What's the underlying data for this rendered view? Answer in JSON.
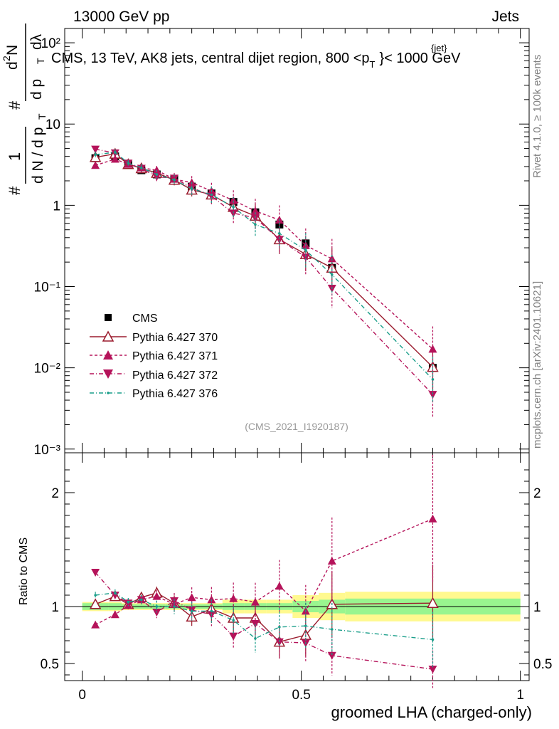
{
  "header": {
    "energy_label": "13000 GeV pp",
    "category_label": "Jets",
    "rivet_label": "Rivet 4.1.0, ≥ 100k events",
    "mcplots_label": "mcplots.cern.ch [arXiv:2401.10621]",
    "analysis_id": "(CMS_2021_I1920187)",
    "plot_title_main": "CMS, 13 TeV, AK8 jets, central dijet region, 800 <p",
    "plot_title_sub": "T",
    "plot_title_sup": "{jet}",
    "plot_title_end": "}< 1000 GeV"
  },
  "axes": {
    "main_ylabel_parts": [
      "1",
      "d N / d p",
      "T",
      "#",
      "d",
      "2",
      "N",
      "d p",
      "T",
      "dλ",
      "#"
    ],
    "ratio_ylabel": "Ratio to CMS",
    "xlabel": "groomed LHA (charged-only)"
  },
  "colors": {
    "data": "#000000",
    "p370": "#9b1c2e",
    "p371": "#b5135a",
    "p372": "#b5135a",
    "p376": "#1a9e8a",
    "band_inner": "#99f58f",
    "band_outer": "#fff98f"
  },
  "chart_data": [
    {
      "type": "scatter",
      "panel": "main",
      "yscale": "log",
      "xlim": [
        -0.04,
        1.02
      ],
      "ylim": [
        0.0009,
        150
      ],
      "xticks": [
        0,
        0.5,
        1
      ],
      "yticks": [
        {
          "value": 0.001,
          "label": "10⁻³"
        },
        {
          "value": 0.01,
          "label": "10⁻²"
        },
        {
          "value": 0.1,
          "label": "10⁻¹"
        },
        {
          "value": 1,
          "label": "1"
        },
        {
          "value": 10,
          "label": "10"
        },
        {
          "value": 100,
          "label": "10²"
        }
      ],
      "x": [
        0.03,
        0.075,
        0.105,
        0.135,
        0.17,
        0.21,
        0.25,
        0.295,
        0.345,
        0.395,
        0.45,
        0.51,
        0.57,
        0.8
      ],
      "series": [
        {
          "name": "CMS",
          "style": "data",
          "values": [
            3.8,
            4.0,
            3.2,
            2.7,
            2.4,
            2.1,
            1.7,
            1.4,
            1.1,
            0.82,
            0.58,
            0.34,
            0.17,
            0.01
          ]
        },
        {
          "name": "Pythia 6.427 370",
          "style": "p370",
          "values": [
            3.9,
            4.3,
            3.2,
            2.85,
            2.5,
            2.05,
            1.55,
            1.35,
            0.95,
            0.74,
            0.38,
            0.25,
            0.17,
            0.0102
          ]
        },
        {
          "name": "Pythia 6.427 371",
          "style": "p371",
          "values": [
            3.1,
            3.7,
            3.2,
            2.9,
            2.7,
            2.1,
            1.9,
            1.5,
            1.15,
            0.85,
            0.66,
            0.32,
            0.22,
            0.017
          ]
        },
        {
          "name": "Pythia 6.427 372",
          "style": "p372",
          "values": [
            4.9,
            4.4,
            3.3,
            2.85,
            2.25,
            2.15,
            1.65,
            1.3,
            0.8,
            0.7,
            0.38,
            0.23,
            0.095,
            0.0047
          ]
        },
        {
          "name": "Pythia 6.427 376",
          "style": "p376",
          "values": [
            4.2,
            4.5,
            3.3,
            2.9,
            2.4,
            2.05,
            1.6,
            1.35,
            0.95,
            0.58,
            0.45,
            0.28,
            0.14,
            0.0072
          ]
        }
      ]
    },
    {
      "type": "line",
      "panel": "ratio",
      "ylim": [
        0.35,
        2.35
      ],
      "yticks": [
        {
          "value": 0.5,
          "label": "0.5"
        },
        {
          "value": 1,
          "label": "1"
        },
        {
          "value": 2,
          "label": "2"
        }
      ],
      "xticks": [
        {
          "value": 0,
          "label": "0"
        },
        {
          "value": 0.5,
          "label": "0.5"
        },
        {
          "value": 1,
          "label": "1"
        }
      ],
      "bin_edges": [
        0,
        0.06,
        0.09,
        0.12,
        0.15,
        0.19,
        0.23,
        0.27,
        0.32,
        0.37,
        0.42,
        0.48,
        0.54,
        0.6,
        1.0
      ],
      "band_inner_halfwidth": [
        0.03,
        0.03,
        0.02,
        0.02,
        0.02,
        0.02,
        0.02,
        0.02,
        0.03,
        0.03,
        0.03,
        0.05,
        0.06,
        0.07
      ],
      "band_outer_halfwidth": [
        0.04,
        0.04,
        0.03,
        0.03,
        0.03,
        0.03,
        0.03,
        0.03,
        0.06,
        0.06,
        0.06,
        0.1,
        0.12,
        0.13
      ],
      "x": [
        0.03,
        0.075,
        0.105,
        0.135,
        0.17,
        0.21,
        0.25,
        0.295,
        0.345,
        0.395,
        0.45,
        0.51,
        0.57,
        0.8
      ],
      "series": [
        {
          "name": "Pythia 6.427 370",
          "style": "p370",
          "values": [
            1.02,
            1.09,
            1.02,
            1.08,
            1.12,
            1.03,
            0.91,
            0.98,
            0.9,
            0.9,
            0.69,
            0.75,
            1.02,
            1.03
          ]
        },
        {
          "name": "Pythia 6.427 371",
          "style": "p371",
          "values": [
            0.84,
            0.93,
            1.01,
            1.06,
            1.09,
            1.02,
            1.08,
            1.06,
            1.07,
            1.04,
            1.18,
            0.96,
            1.4,
            1.77
          ]
        },
        {
          "name": "Pythia 6.427 372",
          "style": "p372",
          "values": [
            1.3,
            1.1,
            1.03,
            1.06,
            0.95,
            1.05,
            0.97,
            0.93,
            0.74,
            0.85,
            0.69,
            0.68,
            0.57,
            0.45
          ]
        },
        {
          "name": "Pythia 6.427 376",
          "style": "p376",
          "values": [
            1.1,
            1.12,
            1.04,
            1.06,
            1.0,
            1.0,
            0.96,
            0.96,
            0.88,
            0.72,
            0.82,
            0.83,
            0.8,
            0.71
          ]
        }
      ]
    }
  ]
}
